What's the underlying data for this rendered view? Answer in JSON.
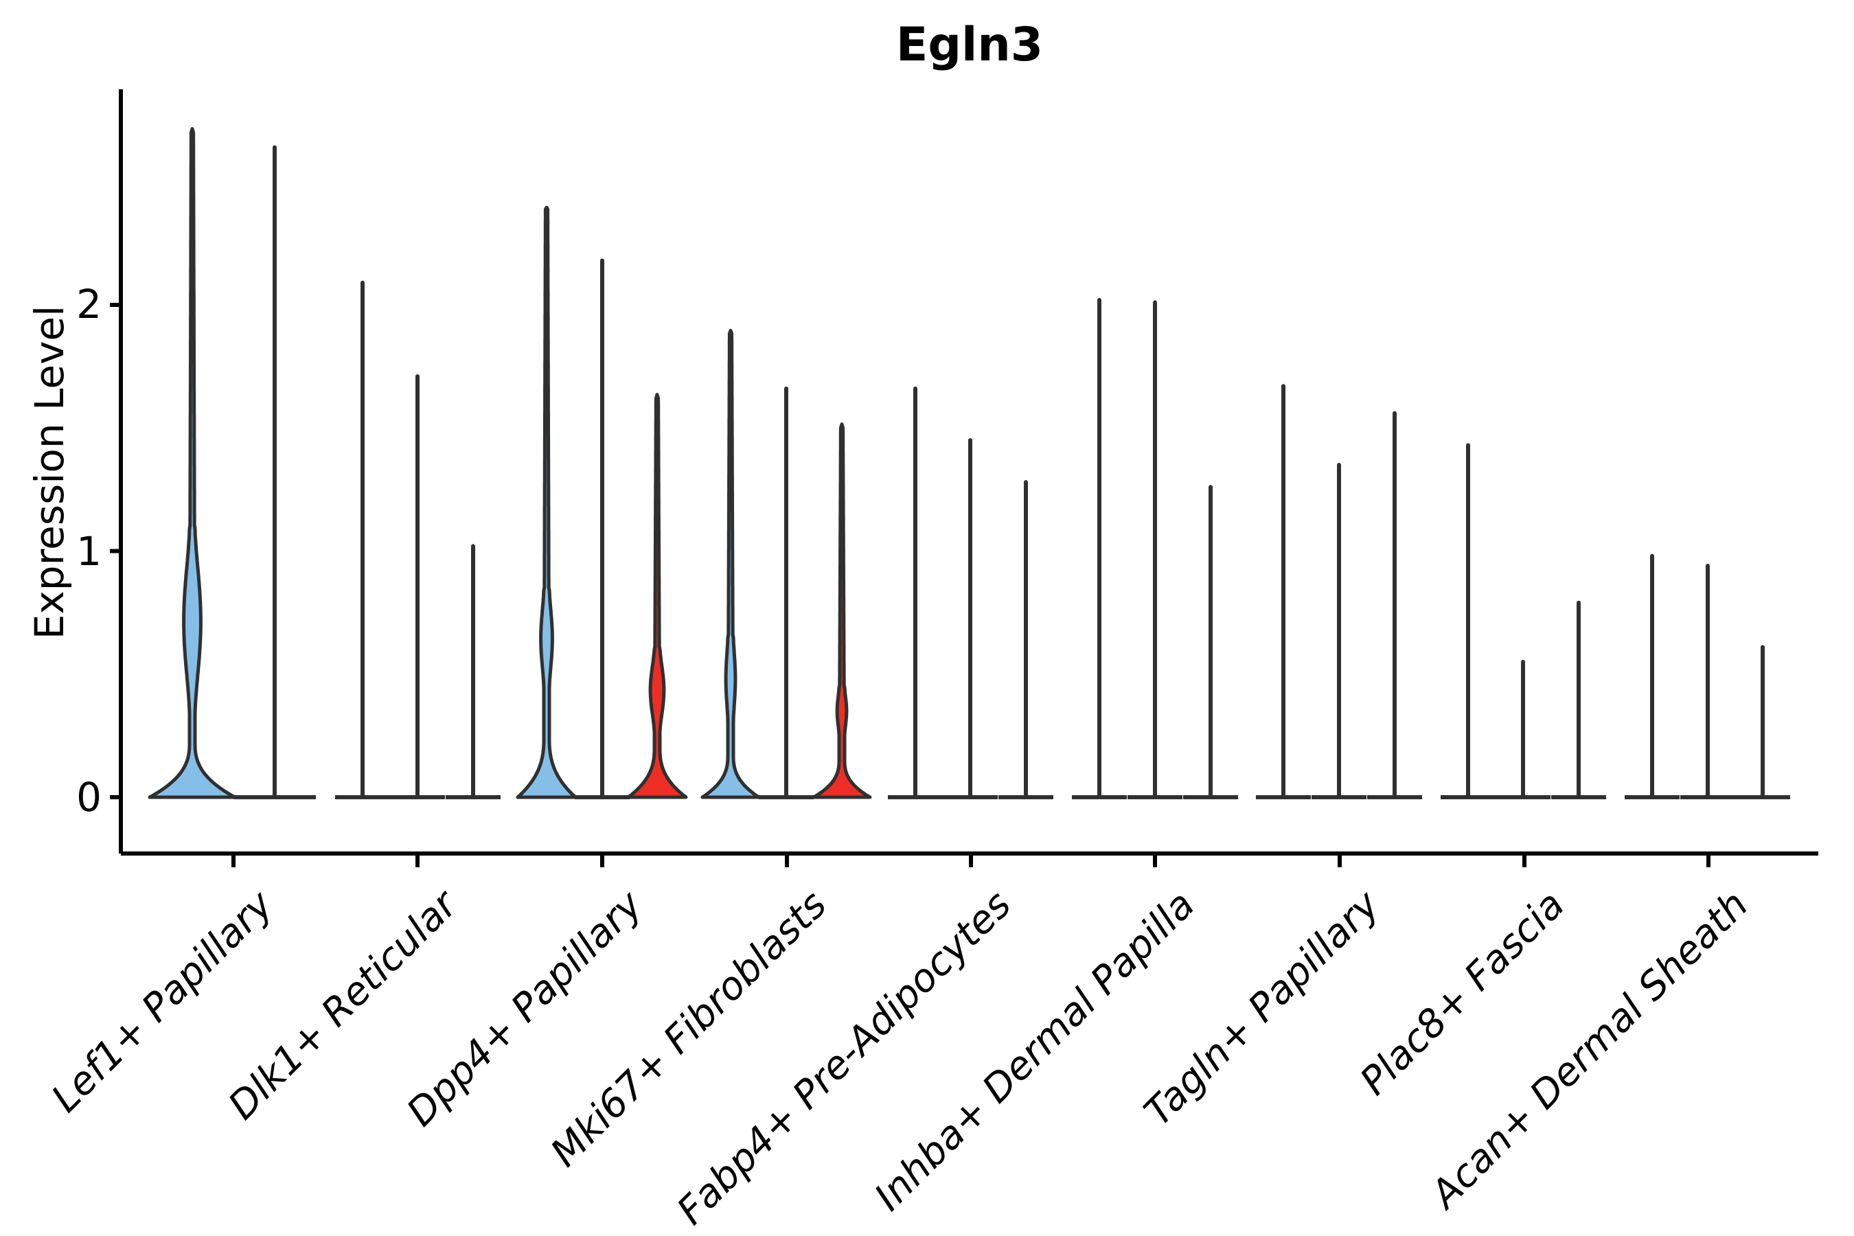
{
  "chart_data": {
    "type": "violin",
    "title": "Egln3",
    "ylabel": "Expression Level",
    "ytick_labels": [
      "0",
      "1",
      "2"
    ],
    "ytick_values": [
      0,
      1,
      2
    ],
    "ylim": [
      -0.23,
      2.87
    ],
    "grid": false,
    "legend": "none",
    "xlabel": "",
    "categories": [
      "Lef1+ Papillary",
      "Dlk1+ Reticular",
      "Dpp4+ Papillary",
      "Mki67+ Fibroblasts",
      "Fabp4+ Pre-Adipocytes",
      "Inhba+ Dermal Papilla",
      "Tagln+ Papillary",
      "Plac8+ Fascia",
      "Acan+ Dermal Sheath"
    ],
    "palette": {
      "blue": "#85BFE8",
      "red": "#EE2E24",
      "outline": "#303030"
    },
    "groups": [
      {
        "category": "Lef1+ Papillary",
        "tick_x": 340,
        "violins": [
          {
            "x": 280,
            "fill": "blue",
            "max": 2.71,
            "base_halfwidth": 62,
            "base_top": 0.22,
            "bulge": {
              "from": 0.33,
              "to": 1.1,
              "peak": 0.68,
              "halfwidth": 10
            }
          },
          {
            "x": 400,
            "fill": "none",
            "max": 2.64,
            "base_halfwidth": 60
          }
        ]
      },
      {
        "category": "Dlk1+ Reticular",
        "tick_x": 608,
        "violins": [
          {
            "x": 528,
            "fill": "none",
            "max": 2.09,
            "base_halfwidth": 40
          },
          {
            "x": 608,
            "fill": "none",
            "max": 1.71,
            "base_halfwidth": 40
          },
          {
            "x": 689,
            "fill": "none",
            "max": 1.02,
            "base_halfwidth": 40
          }
        ]
      },
      {
        "category": "Dpp4+ Papillary",
        "tick_x": 877,
        "violins": [
          {
            "x": 796,
            "fill": "blue",
            "max": 2.39,
            "base_halfwidth": 42,
            "base_top": 0.24,
            "bulge": {
              "from": 0.44,
              "to": 0.85,
              "peak": 0.63,
              "halfwidth": 6
            }
          },
          {
            "x": 877,
            "fill": "none",
            "max": 2.18,
            "base_halfwidth": 40
          },
          {
            "x": 957,
            "fill": "red",
            "max": 1.63,
            "base_halfwidth": 42,
            "base_top": 0.2,
            "bulge": {
              "from": 0.26,
              "to": 0.61,
              "peak": 0.46,
              "halfwidth": 7.5
            }
          }
        ]
      },
      {
        "category": "Mki67+ Fibroblasts",
        "tick_x": 1146,
        "violins": [
          {
            "x": 1064,
            "fill": "blue",
            "max": 1.89,
            "base_halfwidth": 41,
            "base_top": 0.17,
            "bulge": {
              "from": 0.3,
              "to": 0.66,
              "peak": 0.46,
              "halfwidth": 4.5
            }
          },
          {
            "x": 1145,
            "fill": "none",
            "max": 1.66,
            "base_halfwidth": 40
          },
          {
            "x": 1226,
            "fill": "red",
            "max": 1.51,
            "base_halfwidth": 41,
            "base_top": 0.15,
            "bulge": {
              "from": 0.25,
              "to": 0.45,
              "peak": 0.34,
              "halfwidth": 4.5
            }
          }
        ]
      },
      {
        "category": "Fabp4+ Pre-Adipocytes",
        "tick_x": 1414,
        "violins": [
          {
            "x": 1333,
            "fill": "none",
            "max": 1.66,
            "base_halfwidth": 40
          },
          {
            "x": 1413,
            "fill": "none",
            "max": 1.45,
            "base_halfwidth": 40
          },
          {
            "x": 1494,
            "fill": "none",
            "max": 1.28,
            "base_halfwidth": 40
          }
        ]
      },
      {
        "category": "Inhba+ Dermal Papilla",
        "tick_x": 1682,
        "violins": [
          {
            "x": 1601,
            "fill": "none",
            "max": 2.02,
            "base_halfwidth": 40
          },
          {
            "x": 1682,
            "fill": "none",
            "max": 2.01,
            "base_halfwidth": 40
          },
          {
            "x": 1763,
            "fill": "none",
            "max": 1.26,
            "base_halfwidth": 40
          }
        ]
      },
      {
        "category": "Tagln+ Papillary",
        "tick_x": 1951,
        "violins": [
          {
            "x": 1869,
            "fill": "none",
            "max": 1.67,
            "base_halfwidth": 40
          },
          {
            "x": 1950,
            "fill": "none",
            "max": 1.35,
            "base_halfwidth": 40
          },
          {
            "x": 2031,
            "fill": "none",
            "max": 1.56,
            "base_halfwidth": 40
          }
        ]
      },
      {
        "category": "Plac8+ Fascia",
        "tick_x": 2220,
        "violins": [
          {
            "x": 2138,
            "fill": "none",
            "max": 1.43,
            "base_halfwidth": 40
          },
          {
            "x": 2218,
            "fill": "none",
            "max": 0.55,
            "base_halfwidth": 40
          },
          {
            "x": 2299,
            "fill": "none",
            "max": 0.79,
            "base_halfwidth": 40
          }
        ]
      },
      {
        "category": "Acan+ Dermal Sheath",
        "tick_x": 2488,
        "violins": [
          {
            "x": 2406,
            "fill": "none",
            "max": 0.98,
            "base_halfwidth": 40
          },
          {
            "x": 2487,
            "fill": "none",
            "max": 0.94,
            "base_halfwidth": 40
          },
          {
            "x": 2567,
            "fill": "none",
            "max": 0.61,
            "base_halfwidth": 40
          }
        ]
      }
    ]
  }
}
